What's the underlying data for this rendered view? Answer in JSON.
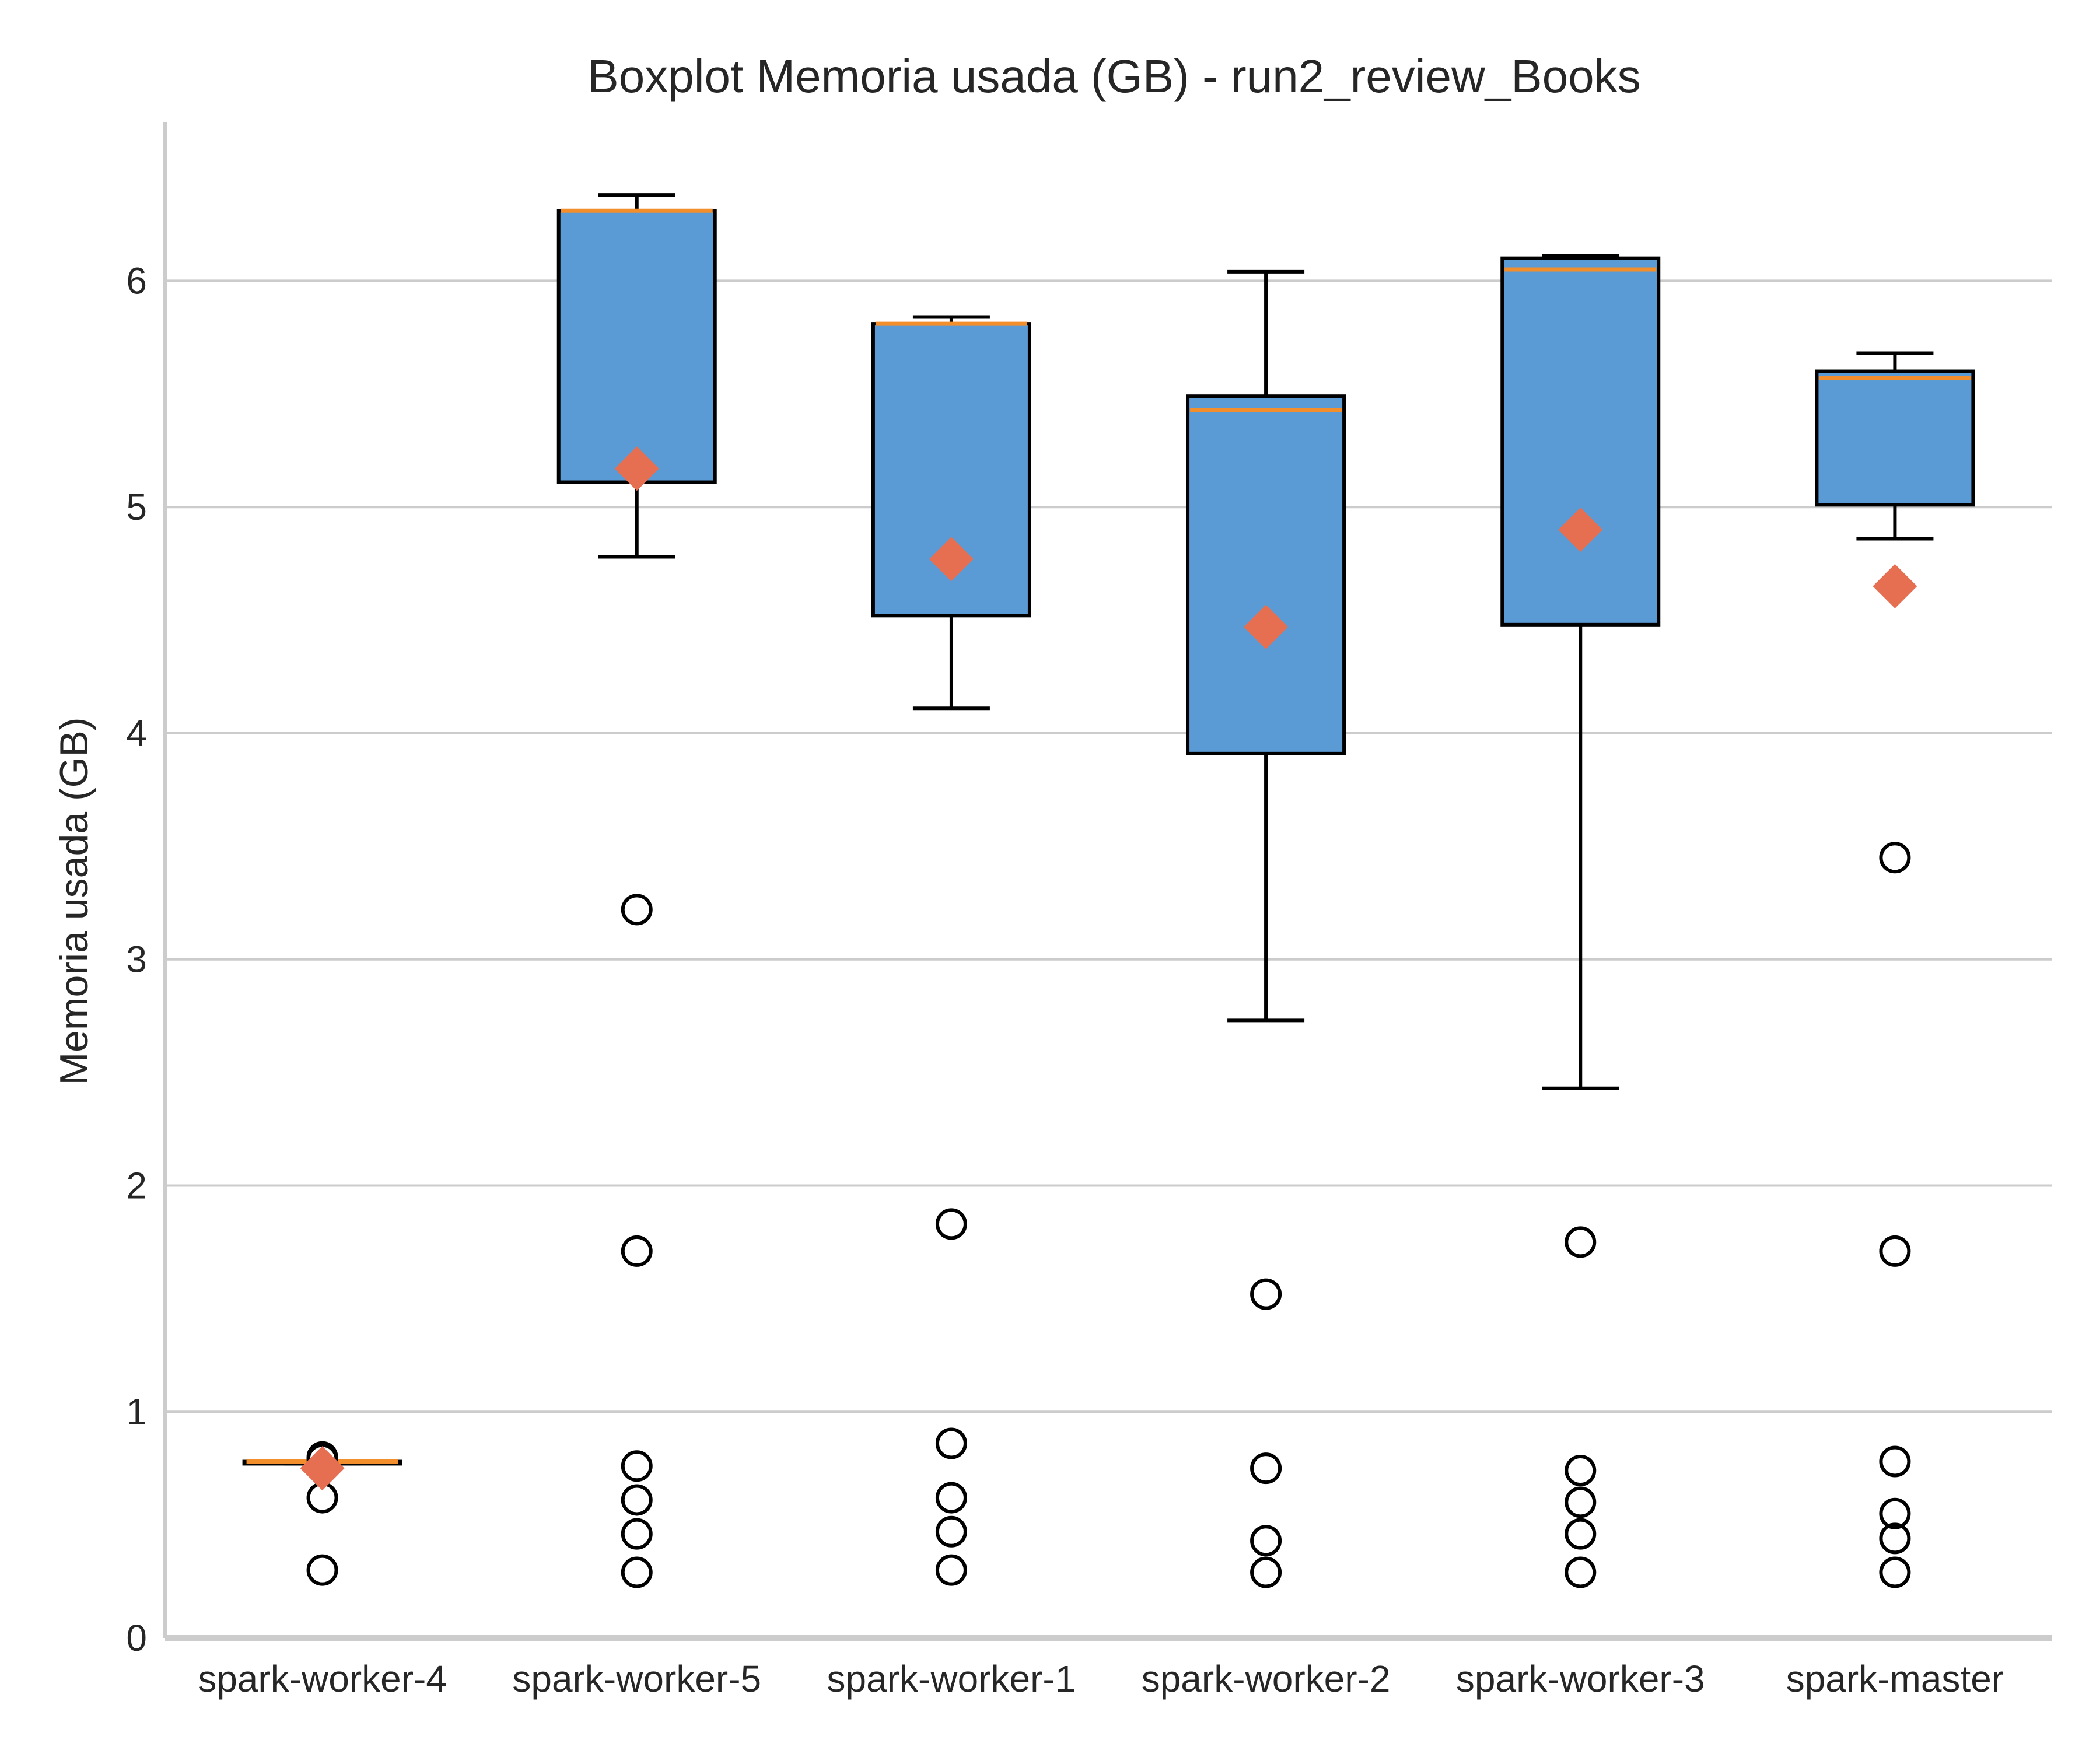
{
  "chart_data": {
    "type": "box",
    "title": "Boxplot Memoria usada (GB) - run2_review_Books",
    "xlabel": "",
    "ylabel": "Memoria usada (GB)",
    "ylim": [
      0,
      6.7
    ],
    "yticks": [
      0,
      1,
      2,
      3,
      4,
      5,
      6
    ],
    "grid": "horizontal",
    "colors": {
      "box_fill": "#5b9bd5",
      "box_edge": "#000000",
      "median": "#f28e2b",
      "mean_marker": "#e76f51",
      "grid": "#cccccc",
      "axis": "#cccccc"
    },
    "categories": [
      "spark-worker-4",
      "spark-worker-5",
      "spark-worker-1",
      "spark-worker-2",
      "spark-worker-3",
      "spark-master"
    ],
    "boxes": [
      {
        "category": "spark-worker-4",
        "whisker_low": 0.77,
        "q1": 0.77,
        "median": 0.78,
        "q3": 0.78,
        "whisker_high": 0.78,
        "mean": 0.75,
        "outliers": [
          0.8,
          0.79,
          0.62,
          0.3
        ]
      },
      {
        "category": "spark-worker-5",
        "whisker_low": 4.78,
        "q1": 5.11,
        "median": 6.31,
        "q3": 6.31,
        "whisker_high": 6.38,
        "mean": 5.17,
        "outliers": [
          3.22,
          1.71,
          0.76,
          0.61,
          0.46,
          0.29
        ]
      },
      {
        "category": "spark-worker-1",
        "whisker_low": 4.11,
        "q1": 4.52,
        "median": 5.81,
        "q3": 5.81,
        "whisker_high": 5.84,
        "mean": 4.77,
        "outliers": [
          1.83,
          0.86,
          0.62,
          0.47,
          0.3
        ]
      },
      {
        "category": "spark-worker-2",
        "whisker_low": 2.73,
        "q1": 3.91,
        "median": 5.43,
        "q3": 5.49,
        "whisker_high": 6.04,
        "mean": 4.47,
        "outliers": [
          1.52,
          0.75,
          0.43,
          0.29
        ]
      },
      {
        "category": "spark-worker-3",
        "whisker_low": 2.43,
        "q1": 4.48,
        "median": 6.05,
        "q3": 6.1,
        "whisker_high": 6.11,
        "mean": 4.9,
        "outliers": [
          1.75,
          0.74,
          0.6,
          0.46,
          0.29
        ]
      },
      {
        "category": "spark-master",
        "whisker_low": 4.86,
        "q1": 5.01,
        "median": 5.57,
        "q3": 5.6,
        "whisker_high": 5.68,
        "mean": 4.65,
        "outliers": [
          3.45,
          1.71,
          0.78,
          0.55,
          0.44,
          0.29
        ]
      }
    ]
  }
}
